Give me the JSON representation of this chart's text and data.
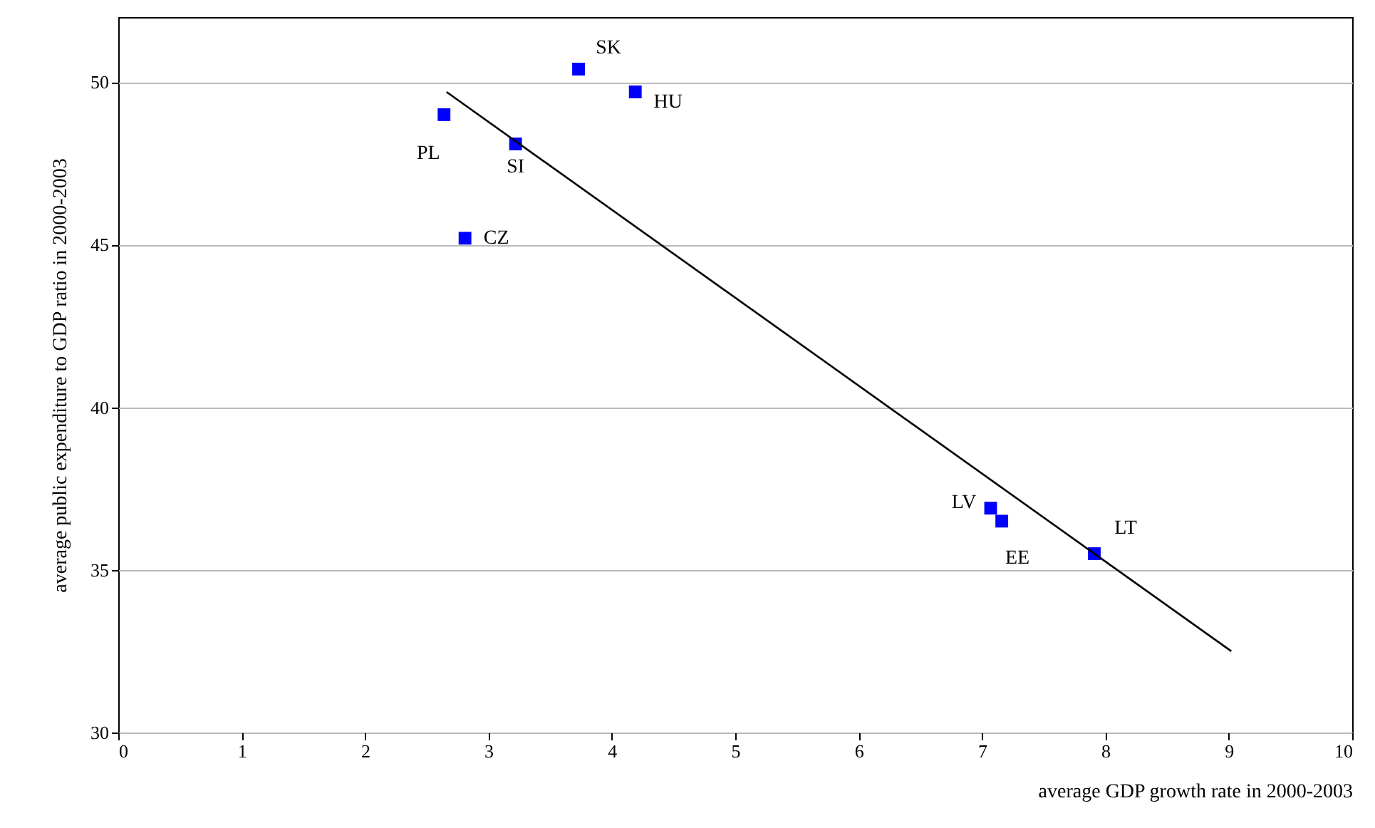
{
  "chart_data": {
    "type": "scatter",
    "xlabel": "average GDP growth rate in 2000-2003",
    "ylabel": "average public expenditure to GDP ratio in 2000-2003",
    "xlim": [
      0,
      10
    ],
    "xticks": [
      0,
      1,
      2,
      3,
      4,
      5,
      6,
      7,
      8,
      9,
      10
    ],
    "ylim": [
      30,
      52
    ],
    "yticks": [
      30,
      35,
      40,
      45,
      50
    ],
    "grid": "y",
    "series": [
      {
        "type": "scatter",
        "color": "#0000ff",
        "marker": "square",
        "x": [
          3.73,
          4.19,
          2.64,
          3.22,
          2.81,
          7.07,
          7.16,
          7.91
        ],
        "values": [
          50.4,
          49.7,
          49.0,
          48.1,
          45.2,
          36.9,
          36.5,
          35.5
        ]
      },
      {
        "type": "line",
        "color": "#000000",
        "x": [
          2.66,
          9.02
        ],
        "values": [
          49.7,
          32.5
        ]
      }
    ],
    "annotations": [
      {
        "text": "SK",
        "x": 3.73,
        "y": 50.4
      },
      {
        "text": "HU",
        "x": 4.19,
        "y": 49.7
      },
      {
        "text": "PL",
        "x": 2.64,
        "y": 49.0
      },
      {
        "text": "SI",
        "x": 3.22,
        "y": 48.1
      },
      {
        "text": "CZ",
        "x": 2.81,
        "y": 45.2
      },
      {
        "text": "LV",
        "x": 7.07,
        "y": 36.9
      },
      {
        "text": "EE",
        "x": 7.16,
        "y": 36.5
      },
      {
        "text": "LT",
        "x": 7.91,
        "y": 35.5
      }
    ]
  }
}
